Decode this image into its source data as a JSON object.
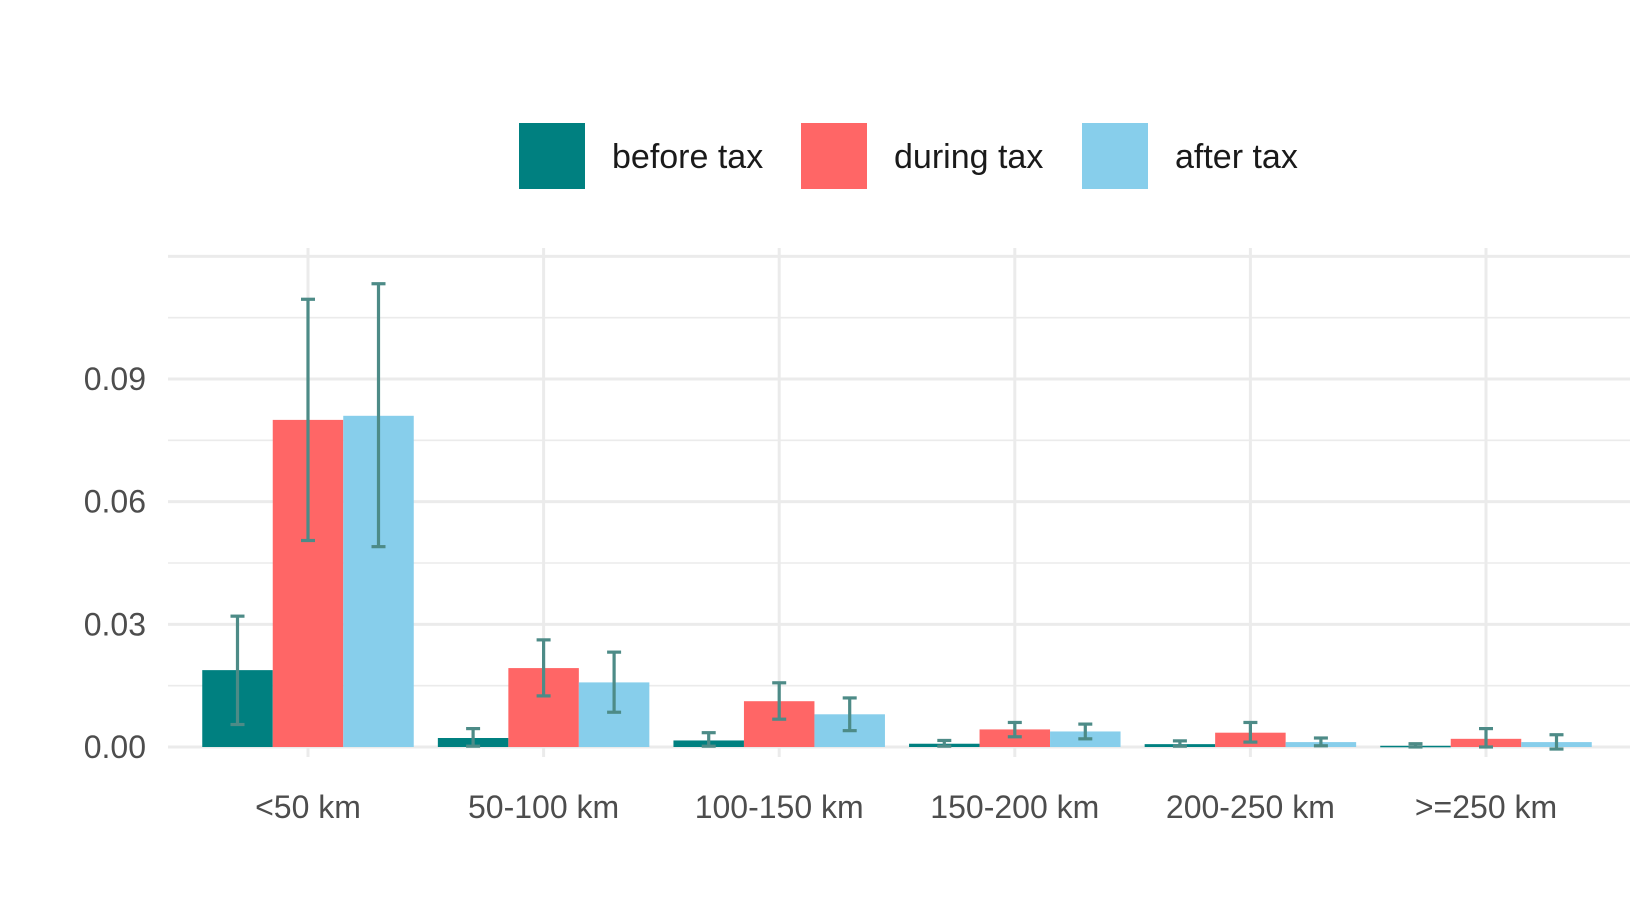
{
  "chart_data": {
    "type": "bar",
    "title": "",
    "xlabel": "",
    "ylabel": "",
    "categories": [
      "<50 km",
      "50-100 km",
      "100-150 km",
      "150-200 km",
      "200-250 km",
      ">=250 km"
    ],
    "series": [
      {
        "name": "before tax",
        "color": "#008080",
        "values": [
          0.0188,
          0.0022,
          0.0016,
          0.0008,
          0.0007,
          0.0003
        ],
        "error_low": [
          0.0055,
          0.0002,
          0.0002,
          0.0002,
          0.0002,
          0.0
        ],
        "error_high": [
          0.032,
          0.0045,
          0.0035,
          0.0016,
          0.0015,
          0.0008
        ]
      },
      {
        "name": "during tax",
        "color": "#FF6666",
        "values": [
          0.08,
          0.0193,
          0.0112,
          0.0043,
          0.0035,
          0.002
        ],
        "error_low": [
          0.0505,
          0.0125,
          0.0068,
          0.0025,
          0.0012,
          0.0
        ],
        "error_high": [
          0.1095,
          0.0262,
          0.0157,
          0.006,
          0.006,
          0.0045
        ]
      },
      {
        "name": "after tax",
        "color": "#87CEEB",
        "values": [
          0.081,
          0.0158,
          0.008,
          0.0038,
          0.0012,
          0.0012
        ],
        "error_low": [
          0.049,
          0.0085,
          0.004,
          0.002,
          0.0003,
          -0.0005
        ],
        "error_high": [
          0.1133,
          0.0232,
          0.012,
          0.0056,
          0.0022,
          0.003
        ]
      }
    ],
    "yticks": [
      "0.00",
      "0.03",
      "0.06",
      "0.09"
    ],
    "ylim": [
      -0.0008,
      0.1165
    ],
    "grid": true,
    "legend_position": "top",
    "error_bar_color": "#4D8B87"
  }
}
